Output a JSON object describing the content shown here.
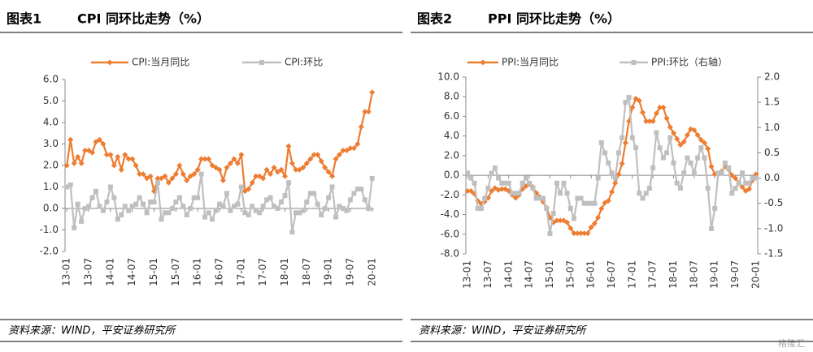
{
  "chart_data": [
    {
      "type": "line",
      "label": "图表1",
      "title": "CPI 同环比走势（%）",
      "note": "资料来源：WIND，平安证券研究所",
      "legend": "top",
      "grid": false,
      "categories": [
        "13-01",
        null,
        null,
        null,
        null,
        null,
        "13-07",
        null,
        null,
        null,
        null,
        null,
        "14-01",
        null,
        null,
        null,
        null,
        null,
        "14-07",
        null,
        null,
        null,
        null,
        null,
        "15-01",
        null,
        null,
        null,
        null,
        null,
        "15-07",
        null,
        null,
        null,
        null,
        null,
        "16-01",
        null,
        null,
        null,
        null,
        null,
        "16-07",
        null,
        null,
        null,
        null,
        null,
        "17-01",
        null,
        null,
        null,
        null,
        null,
        "17-07",
        null,
        null,
        null,
        null,
        null,
        "18-01",
        null,
        null,
        null,
        null,
        null,
        "18-07",
        null,
        null,
        null,
        null,
        null,
        "19-01",
        null,
        null,
        null,
        null,
        null,
        "19-07",
        null,
        null,
        null,
        null,
        null,
        "20-01"
      ],
      "ylim": [
        -2,
        6
      ],
      "yticks": [
        {
          "value": -2,
          "label": "-2.0"
        },
        {
          "value": -1,
          "label": "-1.0"
        },
        {
          "value": 0,
          "label": "0.0"
        },
        {
          "value": 1,
          "label": "1.0"
        },
        {
          "value": 2,
          "label": "2.0"
        },
        {
          "value": 3,
          "label": "3.0"
        },
        {
          "value": 4,
          "label": "4.0"
        },
        {
          "value": 5,
          "label": "5.0"
        },
        {
          "value": 6,
          "label": "6.0"
        }
      ],
      "series": [
        {
          "name": "CPI:当月同比",
          "color": "#ed7d31",
          "marker": "diamond",
          "values": [
            2.0,
            3.2,
            2.1,
            2.4,
            2.1,
            2.7,
            2.7,
            2.6,
            3.1,
            3.2,
            3.0,
            2.5,
            2.5,
            2.0,
            2.4,
            1.8,
            2.5,
            2.3,
            2.3,
            2.0,
            1.6,
            1.6,
            1.4,
            1.5,
            0.8,
            1.4,
            1.4,
            1.5,
            1.2,
            1.4,
            1.6,
            2.0,
            1.6,
            1.3,
            1.5,
            1.6,
            1.8,
            2.3,
            2.3,
            2.3,
            2.0,
            1.9,
            1.8,
            1.3,
            1.9,
            2.1,
            2.3,
            2.1,
            2.5,
            0.8,
            0.9,
            1.2,
            1.5,
            1.5,
            1.4,
            1.8,
            1.6,
            1.9,
            1.7,
            1.8,
            1.5,
            2.9,
            2.1,
            1.8,
            1.8,
            1.9,
            2.1,
            2.3,
            2.5,
            2.5,
            2.2,
            1.9,
            1.7,
            1.5,
            2.3,
            2.5,
            2.7,
            2.7,
            2.8,
            2.8,
            3.0,
            3.8,
            4.5,
            4.5,
            5.4
          ]
        },
        {
          "name": "CPI:环比",
          "color": "#bfbfbf",
          "marker": "square",
          "values": [
            1.0,
            1.1,
            -0.9,
            0.2,
            -0.6,
            0.0,
            0.1,
            0.5,
            0.8,
            0.1,
            -0.1,
            0.3,
            1.0,
            0.5,
            -0.5,
            -0.3,
            0.1,
            -0.1,
            0.1,
            0.2,
            0.5,
            0.2,
            -0.2,
            0.3,
            0.3,
            1.2,
            -0.5,
            -0.2,
            -0.2,
            0.0,
            0.3,
            0.5,
            0.1,
            -0.3,
            0.0,
            0.5,
            0.5,
            1.6,
            -0.4,
            -0.2,
            -0.5,
            -0.1,
            0.2,
            0.1,
            0.7,
            -0.1,
            0.1,
            0.2,
            1.0,
            -0.2,
            -0.3,
            0.1,
            -0.1,
            -0.2,
            0.1,
            0.4,
            0.5,
            0.1,
            0.0,
            0.3,
            0.6,
            1.2,
            -1.1,
            -0.2,
            -0.2,
            -0.1,
            0.3,
            0.7,
            0.7,
            0.2,
            -0.3,
            0.0,
            0.5,
            1.0,
            -0.4,
            0.1,
            0.0,
            -0.1,
            0.4,
            0.7,
            0.9,
            0.9,
            0.4,
            0.0,
            1.4
          ]
        }
      ]
    },
    {
      "type": "line",
      "label": "图表2",
      "title": "PPI 同环比走势（%）",
      "note": "资料来源：WIND，平安证券研究所",
      "legend": "top",
      "grid": false,
      "categories": [
        "13-01",
        null,
        null,
        null,
        null,
        null,
        "13-07",
        null,
        null,
        null,
        null,
        null,
        "14-01",
        null,
        null,
        null,
        null,
        null,
        "14-07",
        null,
        null,
        null,
        null,
        null,
        "15-01",
        null,
        null,
        null,
        null,
        null,
        "15-07",
        null,
        null,
        null,
        null,
        null,
        "16-01",
        null,
        null,
        null,
        null,
        null,
        "16-07",
        null,
        null,
        null,
        null,
        null,
        "17-01",
        null,
        null,
        null,
        null,
        null,
        "17-07",
        null,
        null,
        null,
        null,
        null,
        "18-01",
        null,
        null,
        null,
        null,
        null,
        "18-07",
        null,
        null,
        null,
        null,
        null,
        "19-01",
        null,
        null,
        null,
        null,
        null,
        "19-07",
        null,
        null,
        null,
        null,
        null,
        "20-01"
      ],
      "ylim": [
        -8,
        10
      ],
      "yticks": [
        {
          "value": -8,
          "label": "-8.0"
        },
        {
          "value": -6,
          "label": "-6.0"
        },
        {
          "value": -4,
          "label": "-4.0"
        },
        {
          "value": -2,
          "label": "-2.0"
        },
        {
          "value": 0,
          "label": "0.0"
        },
        {
          "value": 2,
          "label": "2.0"
        },
        {
          "value": 4,
          "label": "4.0"
        },
        {
          "value": 6,
          "label": "6.0"
        },
        {
          "value": 8,
          "label": "8.0"
        },
        {
          "value": 10,
          "label": "10.0"
        }
      ],
      "y2lim": [
        -1.5,
        2.0
      ],
      "y2ticks": [
        {
          "value": -1.5,
          "label": "-1.5"
        },
        {
          "value": -1,
          "label": "-1.0"
        },
        {
          "value": -0.5,
          "label": "-0.5"
        },
        {
          "value": 0,
          "label": "0.0"
        },
        {
          "value": 0.5,
          "label": "0.5"
        },
        {
          "value": 1,
          "label": "1.0"
        },
        {
          "value": 1.5,
          "label": "1.5"
        },
        {
          "value": 2,
          "label": "2.0"
        }
      ],
      "series": [
        {
          "name": "PPI:当月同比",
          "color": "#ed7d31",
          "marker": "diamond",
          "values": [
            -1.6,
            -1.6,
            -1.9,
            -2.6,
            -2.9,
            -2.7,
            -2.3,
            -1.6,
            -1.3,
            -1.5,
            -1.4,
            -1.4,
            -1.6,
            -2.0,
            -2.3,
            -2.0,
            -1.4,
            -1.1,
            -0.9,
            -1.2,
            -1.8,
            -2.2,
            -2.7,
            -3.3,
            -4.3,
            -4.8,
            -4.6,
            -4.6,
            -4.6,
            -4.8,
            -5.4,
            -5.9,
            -5.9,
            -5.9,
            -5.9,
            -5.9,
            -5.3,
            -4.9,
            -4.3,
            -3.4,
            -2.8,
            -2.6,
            -1.7,
            -0.8,
            0.1,
            1.2,
            3.3,
            5.5,
            6.9,
            7.8,
            7.6,
            6.4,
            5.5,
            5.5,
            5.5,
            6.3,
            6.9,
            6.9,
            5.8,
            4.9,
            4.3,
            3.7,
            3.1,
            3.4,
            4.1,
            4.7,
            4.6,
            4.1,
            3.6,
            3.3,
            2.7,
            0.9,
            0.1,
            0.1,
            0.4,
            0.9,
            0.6,
            0.0,
            -0.3,
            -0.8,
            -1.2,
            -1.6,
            -1.4,
            -0.5,
            0.1
          ]
        },
        {
          "name": "PPI:环比（右轴）",
          "color": "#bfbfbf",
          "marker": "square",
          "axis": "y2",
          "values": [
            0.1,
            0.0,
            -0.1,
            -0.6,
            -0.6,
            -0.4,
            -0.2,
            0.1,
            0.2,
            0.0,
            -0.1,
            -0.1,
            -0.1,
            -0.3,
            -0.3,
            -0.3,
            -0.1,
            0.0,
            -0.1,
            -0.2,
            -0.4,
            -0.4,
            -0.4,
            -0.6,
            -1.1,
            -0.7,
            -0.1,
            -0.3,
            -0.1,
            -0.3,
            -0.6,
            -0.8,
            -0.4,
            -0.4,
            -0.5,
            -0.5,
            -0.5,
            -0.5,
            0.0,
            0.7,
            0.5,
            0.3,
            0.1,
            0.0,
            0.5,
            0.8,
            1.5,
            1.6,
            0.8,
            0.6,
            -0.3,
            -0.4,
            -0.3,
            -0.2,
            0.2,
            0.9,
            0.6,
            0.4,
            0.5,
            0.8,
            0.3,
            -0.1,
            -0.2,
            0.1,
            0.4,
            0.3,
            0.1,
            0.4,
            0.6,
            0.4,
            -0.2,
            -1.0,
            -0.6,
            0.1,
            0.1,
            0.3,
            0.2,
            -0.3,
            -0.2,
            -0.1,
            0.1,
            -0.1,
            -0.1,
            0.0,
            0.0
          ]
        }
      ]
    }
  ],
  "watermark": "格隆汇"
}
